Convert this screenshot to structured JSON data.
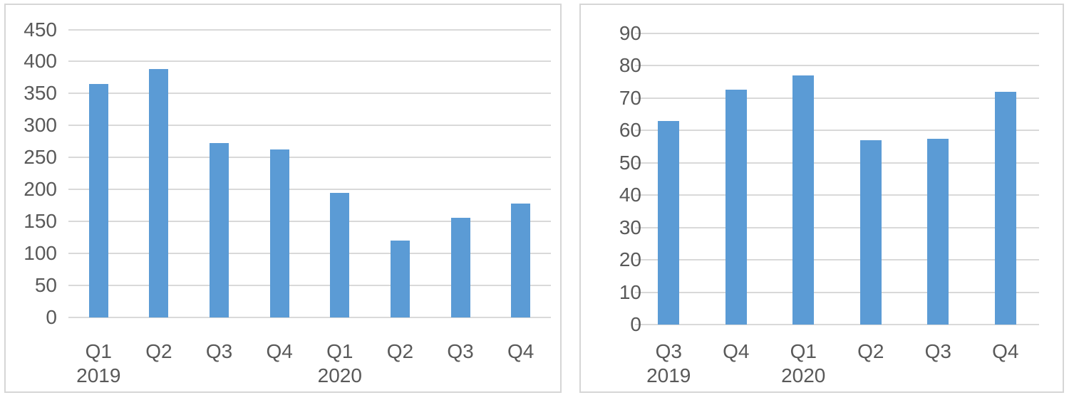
{
  "figure": {
    "title": "",
    "background": "#FFFFFF"
  },
  "colors": {
    "bar_fill": "#5B9BD5",
    "gridline": "#D9D9D9",
    "axis_text": "#595959",
    "panel_border": "#D6D6D6",
    "panel_background": "#FFFFFF"
  },
  "chart_data": [
    {
      "type": "bar",
      "title": "",
      "xlabel": "",
      "ylabel": "",
      "categories": [
        "Q1",
        "Q2",
        "Q3",
        "Q4",
        "Q1",
        "Q2",
        "Q3",
        "Q4"
      ],
      "category_year_groups": [
        {
          "label": "2019",
          "at_index": 0
        },
        {
          "label": "2020",
          "at_index": 4
        }
      ],
      "values": [
        365,
        388,
        272,
        262,
        194,
        120,
        156,
        178
      ],
      "ylim": [
        0,
        450
      ],
      "ytick_step": 50,
      "yticks": [
        0,
        50,
        100,
        150,
        200,
        250,
        300,
        350,
        400,
        450
      ],
      "grid": true,
      "legend": null,
      "bar_color": "#5B9BD5"
    },
    {
      "type": "bar",
      "title": "",
      "xlabel": "",
      "ylabel": "",
      "categories": [
        "Q3",
        "Q4",
        "Q1",
        "Q2",
        "Q3",
        "Q4"
      ],
      "category_year_groups": [
        {
          "label": "2019",
          "at_index": 0
        },
        {
          "label": "2020",
          "at_index": 2
        }
      ],
      "values": [
        63,
        72.5,
        77,
        57,
        57.5,
        72
      ],
      "ylim": [
        0,
        90
      ],
      "ytick_step": 10,
      "yticks": [
        0,
        10,
        20,
        30,
        40,
        50,
        60,
        70,
        80,
        90
      ],
      "grid": true,
      "legend": null,
      "bar_color": "#5B9BD5"
    }
  ]
}
